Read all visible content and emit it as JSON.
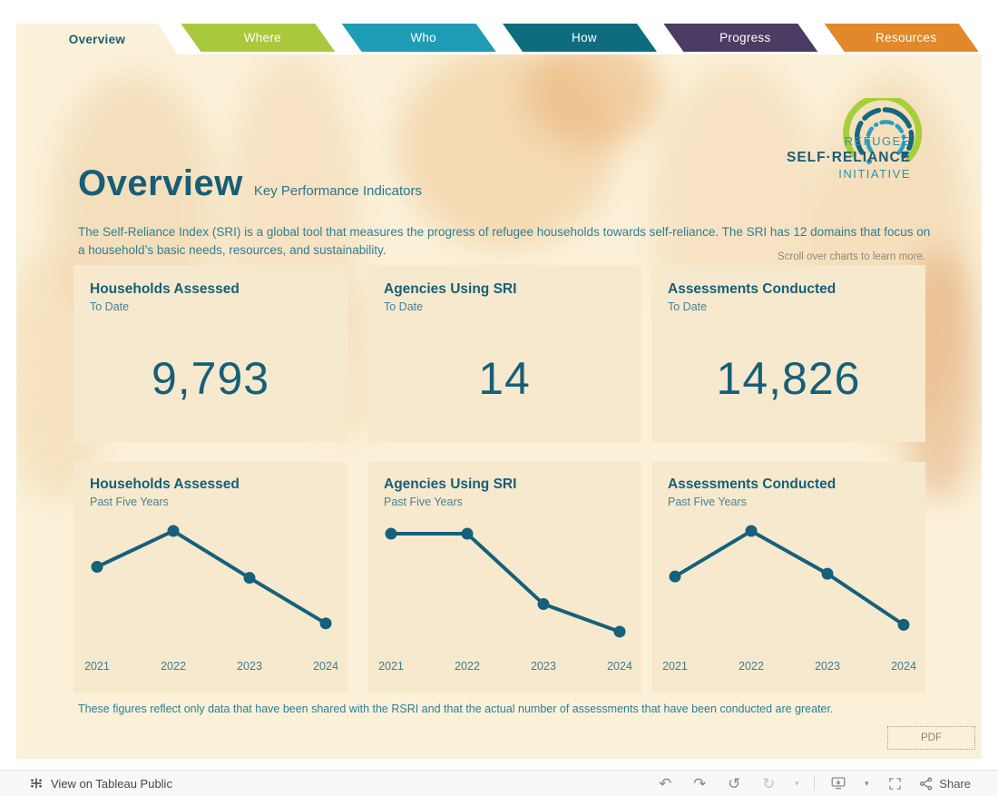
{
  "tabs": [
    {
      "label": "Overview",
      "color": "#fbf1d9",
      "active": true
    },
    {
      "label": "Where",
      "color": "#a9c83b",
      "active": false
    },
    {
      "label": "Who",
      "color": "#1f9cb5",
      "active": false
    },
    {
      "label": "How",
      "color": "#0d6d7f",
      "active": false
    },
    {
      "label": "Progress",
      "color": "#4c3b62",
      "active": false
    },
    {
      "label": "Resources",
      "color": "#e0882b",
      "active": false
    }
  ],
  "logo": {
    "line1": "REFUGEE",
    "line2": "SELF·RELIANCE",
    "line3": "INITIATIVE"
  },
  "header": {
    "title": "Overview",
    "subtitle": "Key Performance Indicators",
    "description": "The Self-Reliance Index (SRI) is a global tool that measures the progress of refugee households towards self-reliance. The SRI has 12 domains that focus on a household’s basic needs, resources, and sustainability.",
    "hint": "Scroll over charts to learn more."
  },
  "kpis": [
    {
      "title": "Households Assessed",
      "period": "To Date",
      "value": "9,793"
    },
    {
      "title": "Agencies Using SRI",
      "period": "To Date",
      "value": "14"
    },
    {
      "title": "Assessments Conducted",
      "period": "To Date",
      "value": "14,826"
    }
  ],
  "chart_data": [
    {
      "type": "line",
      "title": "Households Assessed",
      "subtitle": "Past Five Years",
      "categories": [
        "2021",
        "2022",
        "2023",
        "2024"
      ],
      "values": [
        70,
        96,
        62,
        29
      ],
      "xlabel": "",
      "ylabel": "",
      "ylim": [
        0,
        100
      ],
      "grid": false,
      "axis_labels_shown": false
    },
    {
      "type": "line",
      "title": "Agencies Using SRI",
      "subtitle": "Past Five Years",
      "categories": [
        "2021",
        "2022",
        "2023",
        "2024"
      ],
      "values": [
        94,
        94,
        43,
        23
      ],
      "xlabel": "",
      "ylabel": "",
      "ylim": [
        0,
        100
      ],
      "grid": false,
      "axis_labels_shown": false
    },
    {
      "type": "line",
      "title": "Assessments Conducted",
      "subtitle": "Past Five Years",
      "categories": [
        "2021",
        "2022",
        "2023",
        "2024"
      ],
      "values": [
        63,
        96,
        65,
        28
      ],
      "xlabel": "",
      "ylabel": "",
      "ylim": [
        0,
        100
      ],
      "grid": false,
      "axis_labels_shown": false
    }
  ],
  "footnote": "These figures reflect only data that have been shared with the RSRI and that the actual number of assessments that have been conducted are greater.",
  "pdf_button": "PDF",
  "footer": {
    "view_on": "View on Tableau Public",
    "share": "Share",
    "icons": [
      "tableau-logo-icon",
      "undo-icon",
      "redo-icon",
      "reset-icon",
      "replay-icon",
      "replay-speed-caret-icon",
      "download-icon",
      "download-caret-icon",
      "fullscreen-icon",
      "share-icon"
    ]
  },
  "colors": {
    "background": "#fbf1d9",
    "card": "#f6e9cd",
    "ink": "#15607a",
    "line": "#15607a",
    "muted_gray": "#8f897a",
    "logo_green": "#a6ce39",
    "logo_teal": "#16677e",
    "logo_blue": "#2a9ec7"
  }
}
